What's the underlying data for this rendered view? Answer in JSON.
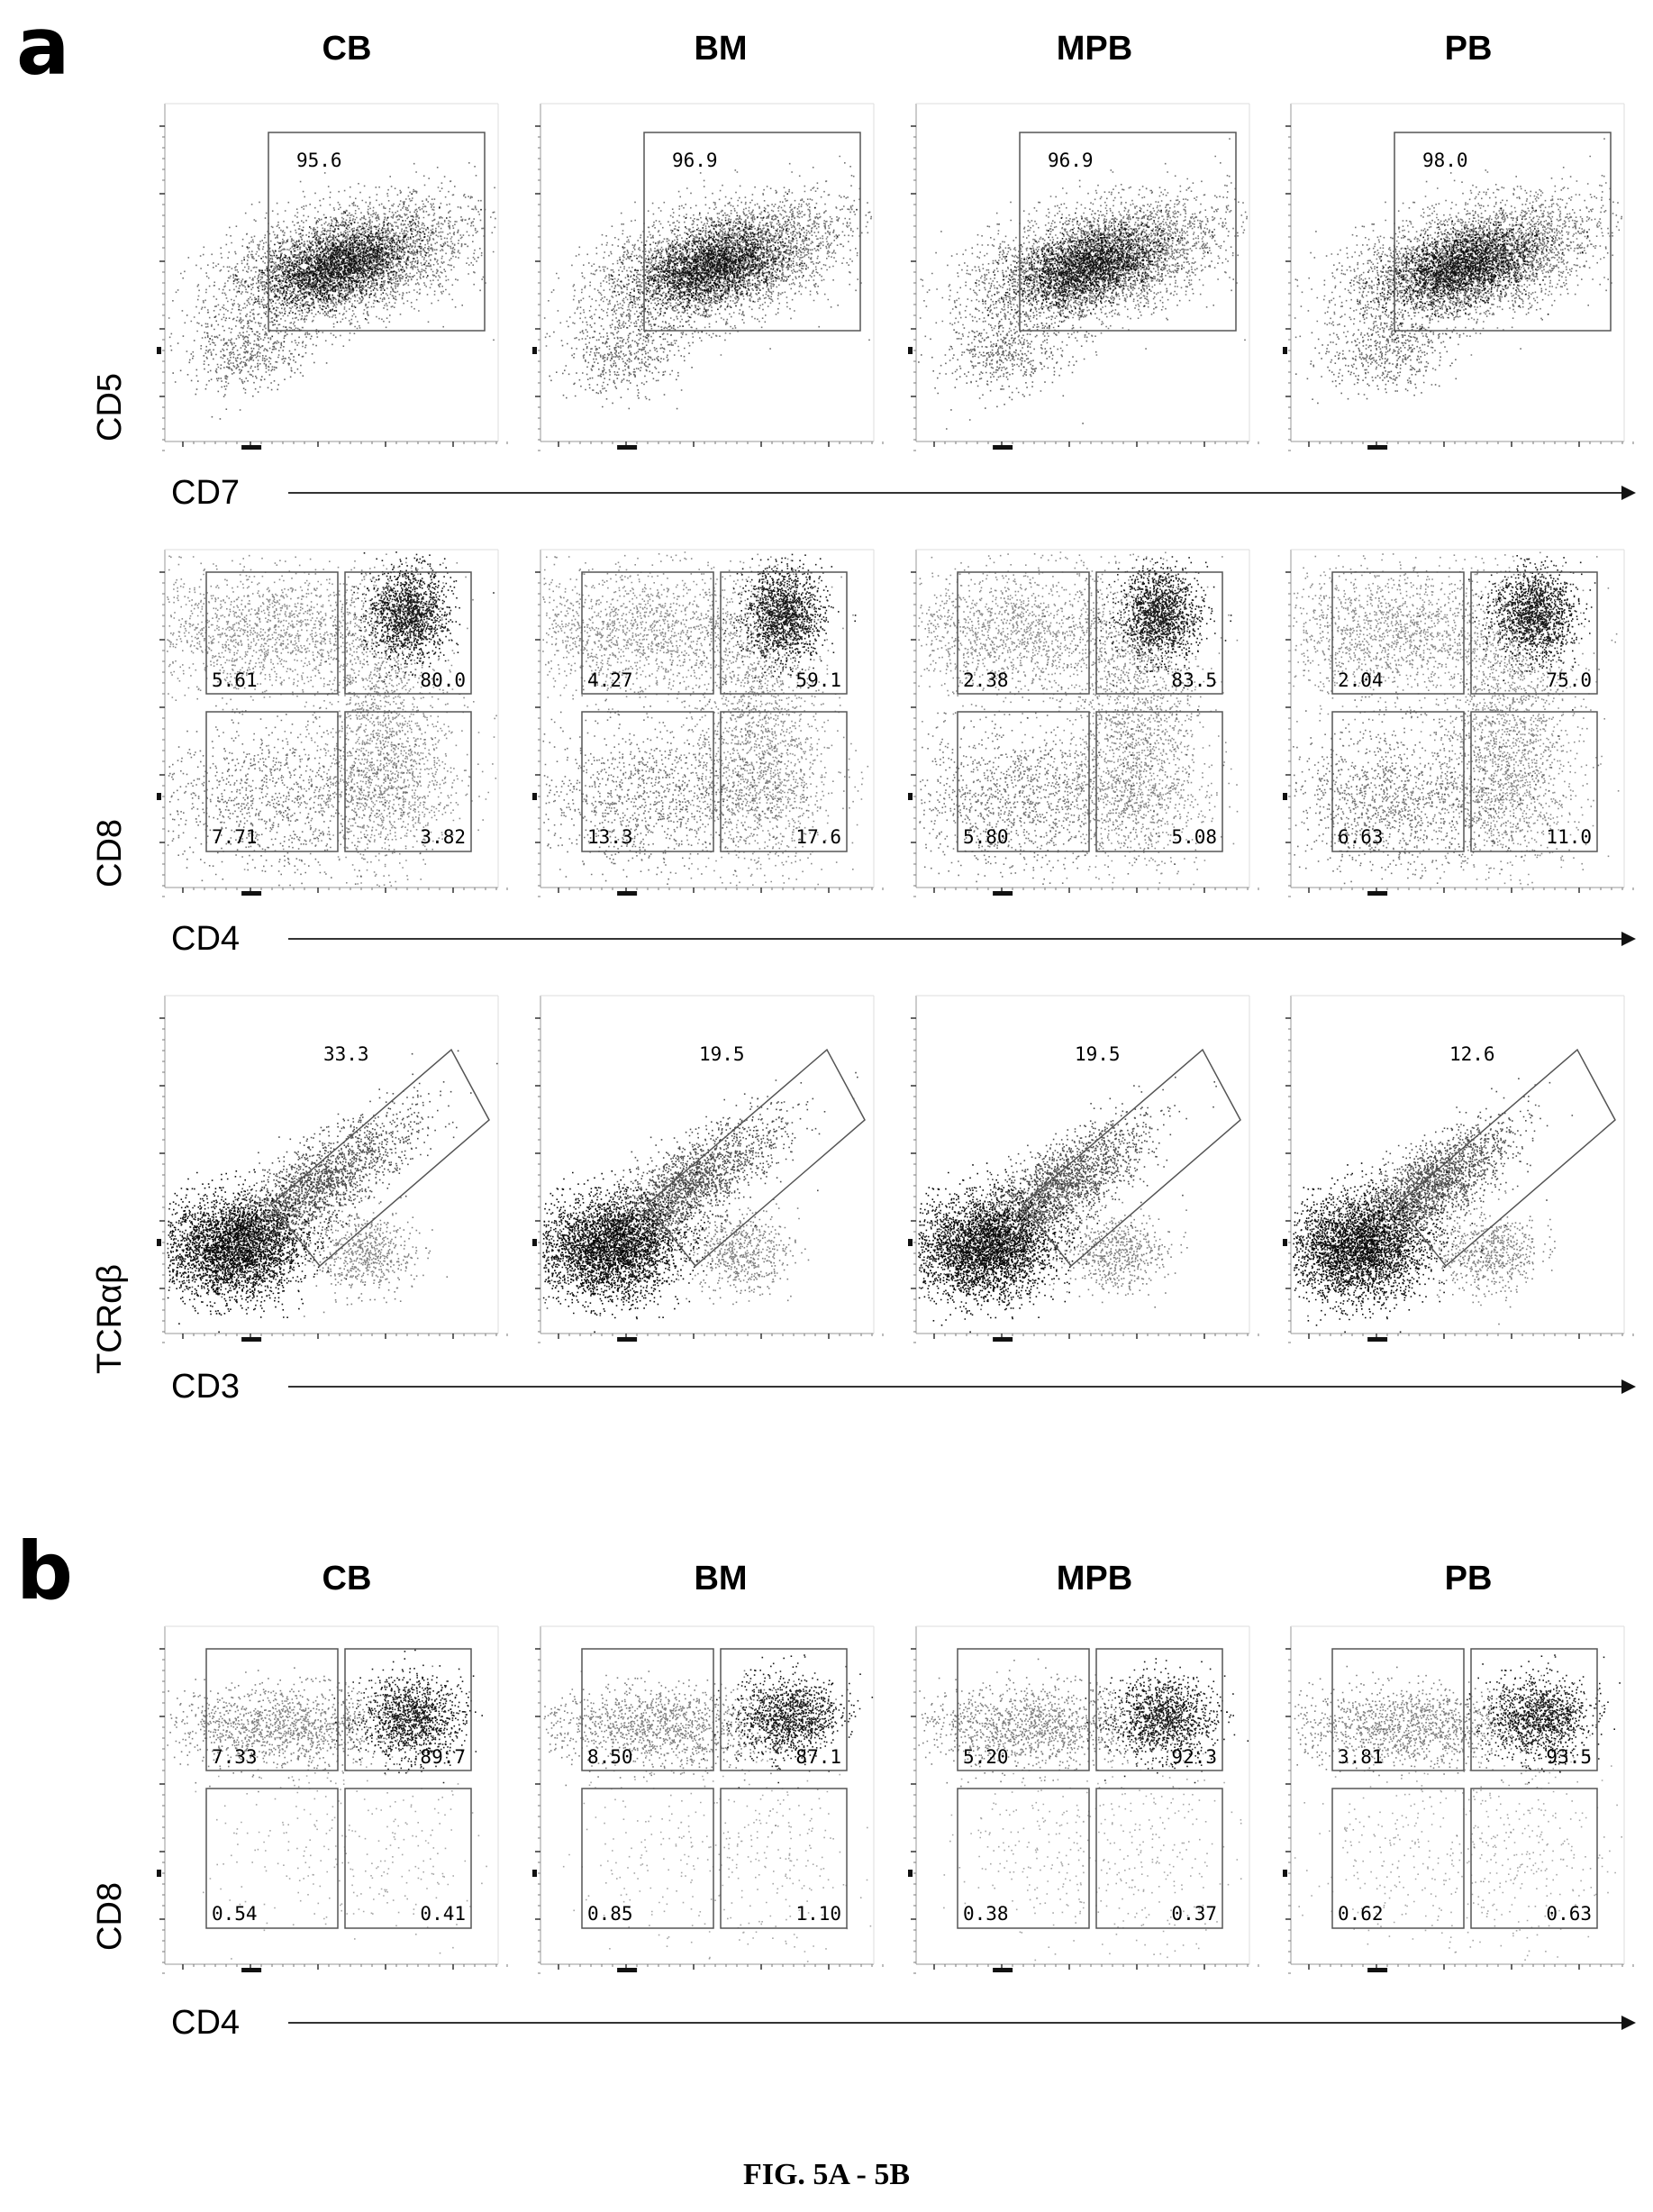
{
  "figure": {
    "panel_a_letter": "a",
    "panel_b_letter": "b",
    "caption": "FIG. 5A - 5B"
  },
  "columns": [
    "CB",
    "BM",
    "MPB",
    "PB"
  ],
  "rows": {
    "a1": {
      "ylabel": "CD5",
      "xlabel": "CD7"
    },
    "a2": {
      "ylabel": "CD8",
      "xlabel": "CD4"
    },
    "a3": {
      "ylabel": "TCRαβ",
      "xlabel": "CD3"
    },
    "b1": {
      "ylabel": "CD8",
      "xlabel": "CD4"
    }
  },
  "chart_data": [
    {
      "type": "scatter",
      "panel": "a",
      "row": "CD5 vs CD7",
      "xlabel": "CD7",
      "ylabel": "CD5",
      "gate": "rectangle",
      "columns": [
        "CB",
        "BM",
        "MPB",
        "PB"
      ],
      "gate_values": [
        [
          "95.6"
        ],
        [
          "96.9"
        ],
        [
          "96.9"
        ],
        [
          "98.0"
        ]
      ]
    },
    {
      "type": "scatter",
      "panel": "a",
      "row": "CD8 vs CD4",
      "xlabel": "CD4",
      "ylabel": "CD8",
      "gate": "quadrant",
      "columns": [
        "CB",
        "BM",
        "MPB",
        "PB"
      ],
      "gate_values": [
        [
          "5.61",
          "80.0",
          "7.71",
          "3.82"
        ],
        [
          "4.27",
          "59.1",
          "13.3",
          "17.6"
        ],
        [
          "2.38",
          "83.5",
          "5.80",
          "5.08"
        ],
        [
          "2.04",
          "75.0",
          "6.63",
          "11.0"
        ]
      ]
    },
    {
      "type": "scatter",
      "panel": "a",
      "row": "TCRαβ vs CD3",
      "xlabel": "CD3",
      "ylabel": "TCRαβ",
      "gate": "diagonal",
      "columns": [
        "CB",
        "BM",
        "MPB",
        "PB"
      ],
      "gate_values": [
        [
          "33.3"
        ],
        [
          "19.5"
        ],
        [
          "19.5"
        ],
        [
          "12.6"
        ]
      ]
    },
    {
      "type": "scatter",
      "panel": "b",
      "row": "CD8 vs CD4",
      "xlabel": "CD4",
      "ylabel": "CD8",
      "gate": "quadrant",
      "columns": [
        "CB",
        "BM",
        "MPB",
        "PB"
      ],
      "gate_values": [
        [
          "7.33",
          "89.7",
          "0.54",
          "0.41"
        ],
        [
          "8.50",
          "87.1",
          "0.85",
          "1.10"
        ],
        [
          "5.20",
          "92.3",
          "0.38",
          "0.37"
        ],
        [
          "3.81",
          "93.5",
          "0.62",
          "0.63"
        ]
      ]
    }
  ]
}
